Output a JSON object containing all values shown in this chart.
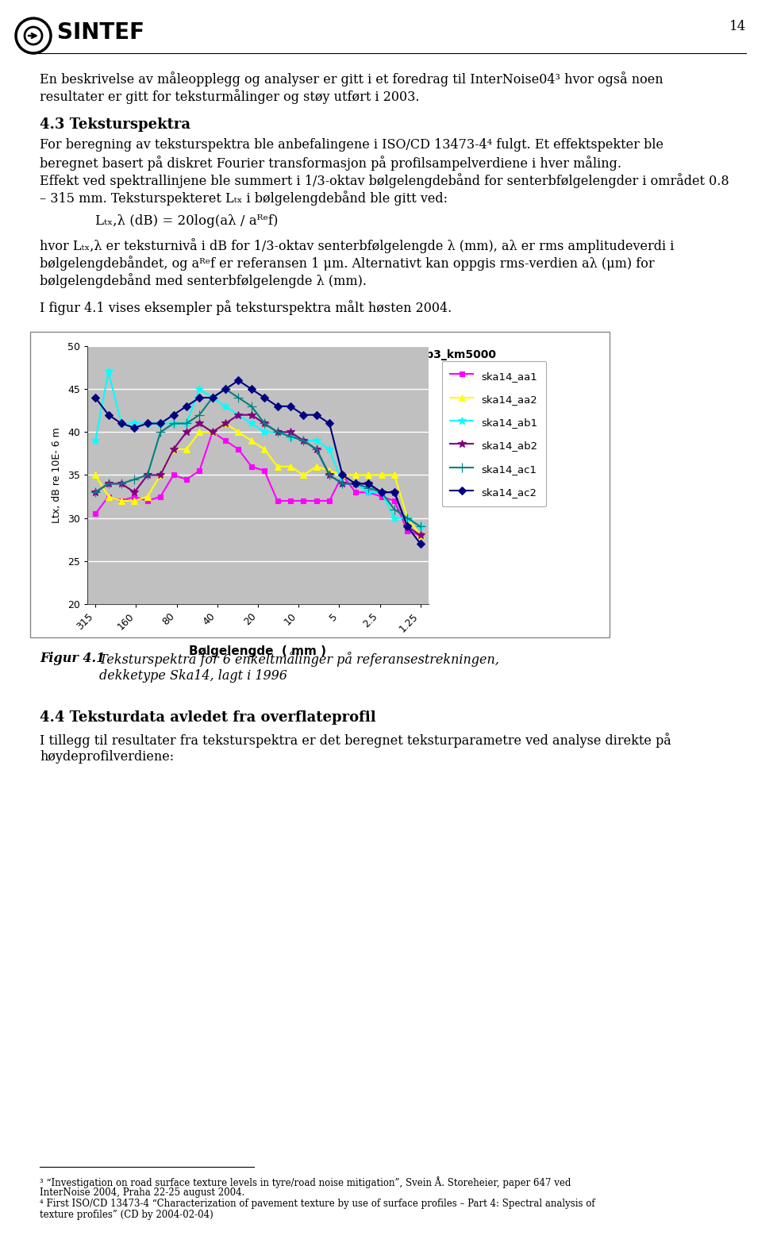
{
  "page_number": "14",
  "para1_lines": [
    "En beskrivelse av måleopplegg og analyser er gitt i et foredrag til InterNoise04³ hvor også noen",
    "resultater er gitt for teksturmålinger og støy utført i 2003."
  ],
  "section_title": "4.3 Teksturspektra",
  "para2_lines": [
    "For beregning av teksturspektra ble anbefalingene i ISO/CD 13473-4⁴ fulgt. Et effektspekter ble",
    "beregnet basert på diskret Fourier transformasjon på profilsampelverdiene i hver måling.",
    "Effekt ved spektrallinjene ble summert i 1/3-oktav bølgelengdebånd for senterbfølgelengder i området 0.8",
    "– 315 mm. Teksturspekteret Lₜₓ i bølgelengdebånd ble gitt ved:"
  ],
  "formula": "Lₜₓ,λ (dB) = 20log(aλ / aᴿᵉf)",
  "para3_lines": [
    "hvor Lₜₓ,λ er teksturnivå i dB for 1/3-oktav senterbfølgelengde λ (mm), aλ er rms amplitudeverdi i",
    "bølgelengdebåndet, og aᴿᵉf er referansen 1 μm. Alternativt kan oppgis rms-verdien aλ (μm) for",
    "bølgelengdebånd med senterbfølgelengde λ (mm)."
  ],
  "para4": "I figur 4.1 vises eksempler på teksturspektra målt høsten 2004.",
  "chart_title": "Rv2_hp3_km5000",
  "xlabel": "Bølgelengde  ( mm )",
  "ylabel": "Ltx, dB re 10E- 6 m",
  "ylim": [
    20,
    50
  ],
  "yticks": [
    20,
    25,
    30,
    35,
    40,
    45,
    50
  ],
  "xtick_labels": [
    "315",
    "160",
    "80",
    "40",
    "20",
    "10",
    "5",
    "2.5",
    "1.25"
  ],
  "background_color": "#ffffff",
  "plot_bg_color": "#c0c0c0",
  "series": {
    "ska14_aa1": {
      "color": "#ff00ff",
      "marker": "s",
      "linewidth": 1.5,
      "markersize": 5,
      "values": [
        30.5,
        32.5,
        32,
        32.5,
        32,
        32.5,
        35,
        34.5,
        35.5,
        40,
        39,
        38,
        36,
        35.5,
        32,
        32,
        32,
        32,
        32,
        35,
        33,
        33,
        32.5,
        32,
        28.5,
        28
      ]
    },
    "ska14_aa2": {
      "color": "#ffff00",
      "marker": "^",
      "linewidth": 1.5,
      "markersize": 6,
      "values": [
        35,
        32.5,
        32,
        32,
        32.5,
        35,
        38,
        38,
        40,
        40,
        41,
        40,
        39,
        38,
        36,
        36,
        35,
        36,
        35.5,
        35,
        35,
        35,
        35,
        35,
        30,
        28
      ]
    },
    "ska14_ab1": {
      "color": "#00ffff",
      "marker": "*",
      "linewidth": 1.5,
      "markersize": 7,
      "values": [
        39,
        47,
        41,
        41,
        41,
        41,
        41,
        41,
        45,
        44,
        43,
        42,
        41,
        40,
        40,
        39.5,
        39,
        39,
        38,
        34,
        34,
        33,
        33,
        30,
        30,
        29
      ]
    },
    "ska14_ab2": {
      "color": "#800080",
      "marker": "*",
      "linewidth": 1.5,
      "markersize": 7,
      "values": [
        33,
        34,
        34,
        33,
        35,
        35,
        38,
        40,
        41,
        40,
        41,
        42,
        42,
        41,
        40,
        40,
        39,
        38,
        35,
        34,
        34,
        34,
        33,
        33,
        29,
        28
      ]
    },
    "ska14_ac1": {
      "color": "#008080",
      "marker": "+",
      "linewidth": 1.5,
      "markersize": 8,
      "values": [
        33,
        34,
        34,
        34.5,
        35,
        40,
        41,
        41,
        42,
        44,
        45,
        44,
        43,
        41,
        40,
        39.5,
        39,
        38,
        35,
        34,
        34,
        33.5,
        33,
        31,
        30,
        29
      ]
    },
    "ska14_ac2": {
      "color": "#000080",
      "marker": "D",
      "linewidth": 1.5,
      "markersize": 5,
      "values": [
        44,
        42,
        41,
        40.5,
        41,
        41,
        42,
        43,
        44,
        44,
        45,
        46,
        45,
        44,
        43,
        43,
        42,
        42,
        41,
        35,
        34,
        34,
        33,
        33,
        29,
        27
      ]
    }
  },
  "fig_caption_num": "Figur 4.1",
  "fig_caption_text": "Teksturspektra for 6 enkeltmålinger på referansestrekningen,",
  "fig_caption_text2": "dekketype Ska14, lagt i 1996",
  "section2_title": "4.4 Teksturdata avledet fra overflateprofil",
  "para5_lines": [
    "I tillegg til resultater fra teksturspektra er det beregnet teksturparametre ved analyse direkte på",
    "høydeprofilverdiene:"
  ],
  "fn_line1": "³ “Investigation on road surface texture levels in tyre/road noise mitigation”, Svein Å. Storeheier, paper 647 ved",
  "fn_line2": "InterNoise 2004, Praha 22-25 august 2004.",
  "fn_line3": "⁴ First ISO/CD 13473-4 “Characterization of pavement texture by use of surface profiles – Part 4: Spectral analysis of",
  "fn_line4": "texture profiles” (CD by 2004-02-04)"
}
